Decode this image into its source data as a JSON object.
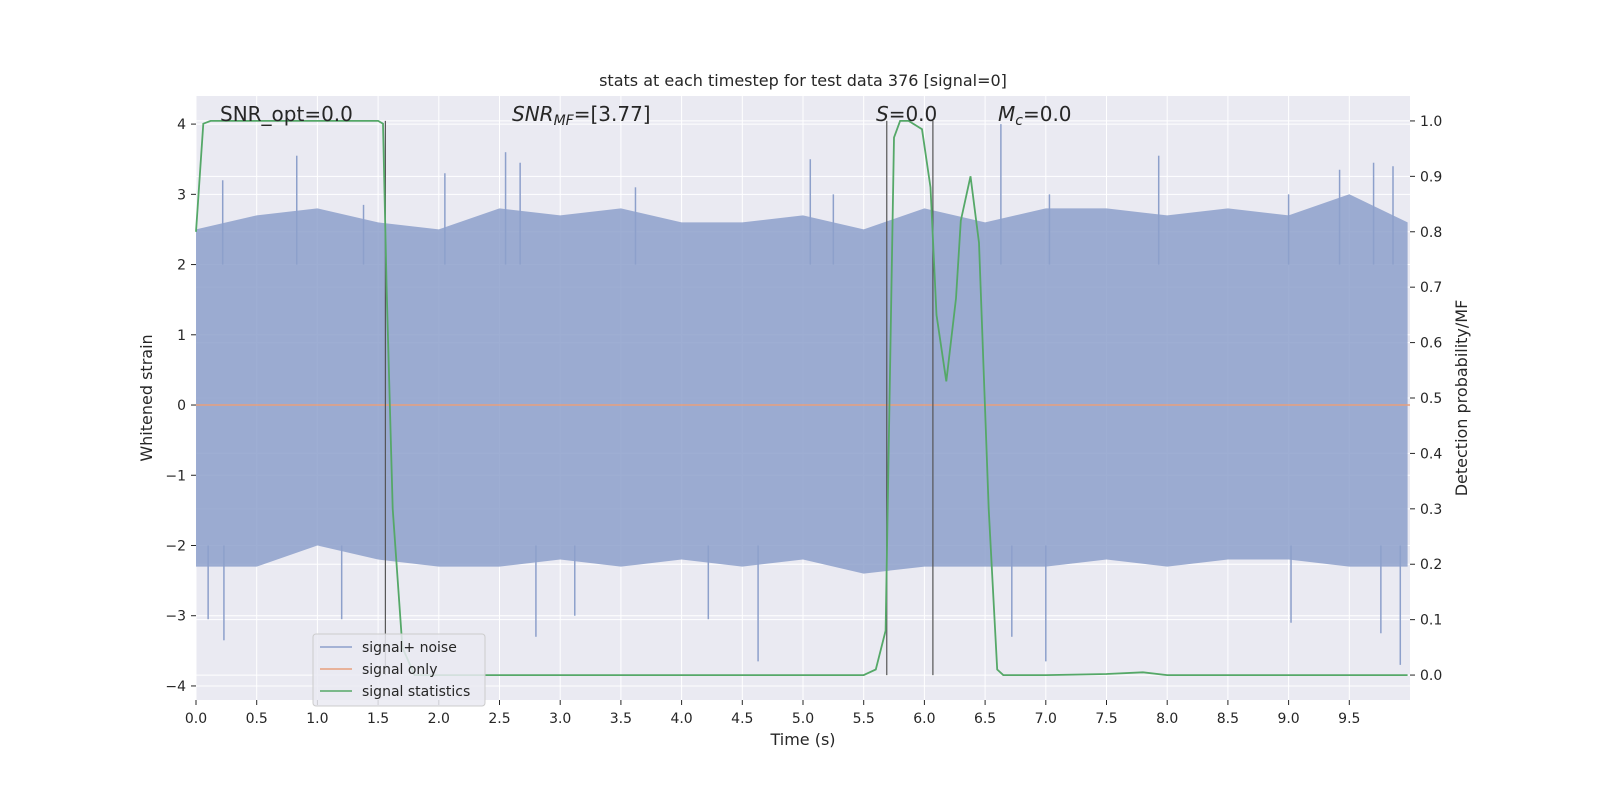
{
  "chart_data": {
    "type": "line",
    "title": "stats at each timestep for test data 376 [signal=0]",
    "xlabel": "Time (s)",
    "ylabel": "Whitened strain",
    "ylabel_right": "Detection probability/MF",
    "xlim": [
      0.0,
      10.0
    ],
    "ylim": [
      -4.2,
      4.4
    ],
    "ylim_right": [
      -0.045,
      1.045
    ],
    "x_ticks": [
      0.0,
      0.5,
      1.0,
      1.5,
      2.0,
      2.5,
      3.0,
      3.5,
      4.0,
      4.5,
      5.0,
      5.5,
      6.0,
      6.5,
      7.0,
      7.5,
      8.0,
      8.5,
      9.0,
      9.5
    ],
    "x_tick_labels": [
      "0.0",
      "0.5",
      "1.0",
      "1.5",
      "2.0",
      "2.5",
      "3.0",
      "3.5",
      "4.0",
      "4.5",
      "5.0",
      "5.5",
      "6.0",
      "6.5",
      "7.0",
      "7.5",
      "8.0",
      "8.5",
      "9.0",
      "9.5"
    ],
    "y_ticks": [
      -4,
      -3,
      -2,
      -1,
      0,
      1,
      2,
      3,
      4
    ],
    "y_tick_labels": [
      "−4",
      "−3",
      "−2",
      "−1",
      "0",
      "1",
      "2",
      "3",
      "4"
    ],
    "y_right_ticks": [
      0.0,
      0.1,
      0.2,
      0.3,
      0.4,
      0.5,
      0.6,
      0.7,
      0.8,
      0.9,
      1.0
    ],
    "y_right_tick_labels": [
      "0.0",
      "0.1",
      "0.2",
      "0.3",
      "0.4",
      "0.5",
      "0.6",
      "0.7",
      "0.8",
      "0.9",
      "1.0"
    ],
    "grid": true,
    "legend_position": "lower-left",
    "annotations": {
      "snr_opt": "SNR_opt=0.0",
      "snr_mf_base": "SNR",
      "snr_mf_sub": "MF",
      "snr_mf_rest": "=[3.77]",
      "s_base": "S",
      "s_rest": "=0.0",
      "mc_base": "M",
      "mc_sub": "c",
      "mc_rest": "=0.0"
    },
    "vertical_markers": [
      1.56,
      5.69,
      6.07
    ],
    "series": [
      {
        "name": "signal+ noise",
        "axis": "left",
        "color": "#8da0cb",
        "style": "band",
        "x": [
          0.0,
          0.5,
          1.0,
          1.5,
          2.0,
          2.5,
          3.0,
          3.5,
          4.0,
          4.5,
          5.0,
          5.5,
          6.0,
          6.5,
          7.0,
          7.5,
          8.0,
          8.5,
          9.0,
          9.5,
          9.98
        ],
        "upper": [
          2.5,
          2.7,
          2.8,
          2.6,
          2.5,
          2.8,
          2.7,
          2.8,
          2.6,
          2.6,
          2.7,
          2.5,
          2.8,
          2.6,
          2.8,
          2.8,
          2.7,
          2.8,
          2.7,
          3.0,
          2.6
        ],
        "lower": [
          -2.3,
          -2.3,
          -2.0,
          -2.2,
          -2.3,
          -2.3,
          -2.2,
          -2.3,
          -2.2,
          -2.3,
          -2.2,
          -2.4,
          -2.3,
          -2.3,
          -2.3,
          -2.2,
          -2.3,
          -2.2,
          -2.2,
          -2.3,
          -2.3
        ],
        "spikes": [
          {
            "x": 0.22,
            "y": 3.2
          },
          {
            "x": 0.83,
            "y": 3.55
          },
          {
            "x": 1.38,
            "y": 2.85
          },
          {
            "x": 2.05,
            "y": 3.3
          },
          {
            "x": 2.55,
            "y": 3.6
          },
          {
            "x": 2.67,
            "y": 3.45
          },
          {
            "x": 3.62,
            "y": 3.1
          },
          {
            "x": 5.06,
            "y": 3.5
          },
          {
            "x": 5.25,
            "y": 3.0
          },
          {
            "x": 6.63,
            "y": 4.0
          },
          {
            "x": 7.03,
            "y": 3.0
          },
          {
            "x": 7.93,
            "y": 3.55
          },
          {
            "x": 9.0,
            "y": 3.0
          },
          {
            "x": 9.42,
            "y": 3.35
          },
          {
            "x": 9.7,
            "y": 3.45
          },
          {
            "x": 9.86,
            "y": 3.4
          },
          {
            "x": 0.1,
            "y": -3.05
          },
          {
            "x": 0.23,
            "y": -3.35
          },
          {
            "x": 1.2,
            "y": -3.05
          },
          {
            "x": 2.8,
            "y": -3.3
          },
          {
            "x": 3.12,
            "y": -3.0
          },
          {
            "x": 4.22,
            "y": -3.05
          },
          {
            "x": 4.63,
            "y": -3.65
          },
          {
            "x": 6.72,
            "y": -3.3
          },
          {
            "x": 7.0,
            "y": -3.65
          },
          {
            "x": 9.02,
            "y": -3.1
          },
          {
            "x": 9.76,
            "y": -3.25
          },
          {
            "x": 9.92,
            "y": -3.7
          }
        ]
      },
      {
        "name": "signal only",
        "axis": "left",
        "color": "#e8a07d",
        "x": [
          0.0,
          10.0
        ],
        "y": [
          0.0,
          0.0
        ]
      },
      {
        "name": "signal statistics",
        "axis": "right",
        "color": "#55a868",
        "x": [
          0.0,
          0.06,
          0.12,
          0.2,
          0.5,
          1.0,
          1.5,
          1.54,
          1.57,
          1.62,
          1.7,
          1.8,
          2.0,
          3.0,
          4.0,
          5.0,
          5.5,
          5.6,
          5.68,
          5.75,
          5.8,
          5.87,
          5.98,
          6.05,
          6.1,
          6.18,
          6.26,
          6.3,
          6.38,
          6.45,
          6.53,
          6.6,
          6.65,
          7.0,
          7.5,
          7.8,
          8.0,
          8.5,
          9.0,
          9.5,
          9.98
        ],
        "y": [
          0.8,
          0.995,
          1.0,
          1.0,
          1.0,
          1.0,
          1.0,
          0.995,
          0.7,
          0.3,
          0.05,
          0.0,
          0.0,
          0.0,
          0.0,
          0.0,
          0.0,
          0.01,
          0.08,
          0.97,
          1.0,
          1.0,
          0.985,
          0.88,
          0.65,
          0.53,
          0.68,
          0.82,
          0.9,
          0.78,
          0.3,
          0.01,
          0.0,
          0.0,
          0.002,
          0.005,
          0.0,
          0.0,
          0.0,
          0.0,
          0.0
        ]
      }
    ]
  }
}
